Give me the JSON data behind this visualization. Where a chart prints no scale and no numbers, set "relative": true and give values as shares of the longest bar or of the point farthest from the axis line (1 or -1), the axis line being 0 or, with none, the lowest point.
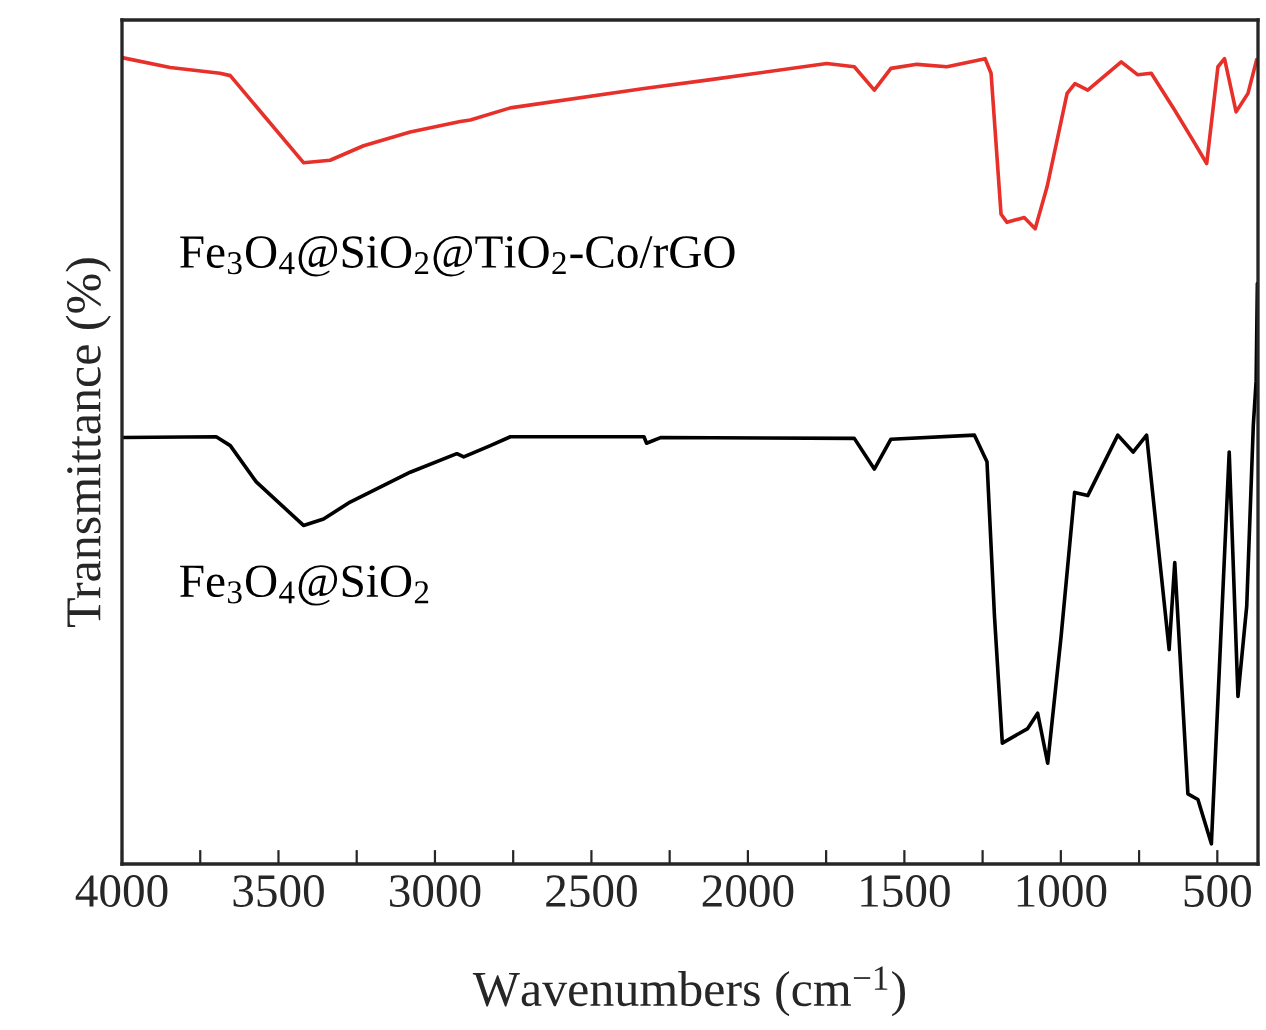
{
  "chart_data": {
    "type": "line",
    "relative": true,
    "xlabel": "Wavenumbers (cm$^{−1}$)",
    "ylabel": "Transmittance (%)",
    "xlim": [
      4000,
      370
    ],
    "xticks": [
      4000,
      {
        "value": 3750,
        "label": null
      },
      3500,
      {
        "value": 3250,
        "label": null
      },
      3000,
      {
        "value": 2750,
        "label": null
      },
      2500,
      {
        "value": 2250,
        "label": null
      },
      2000,
      {
        "value": 1750,
        "label": null
      },
      1500,
      {
        "value": 1250,
        "label": null
      },
      1000,
      {
        "value": 750,
        "label": null
      },
      500
    ],
    "tick_labels": "x",
    "grid": false,
    "legend": false,
    "series": [
      {
        "name": "Fe$_{3}$O$_{4}$@SiO$_{2}$@TiO$_{2}$-Co/rGO",
        "color": "#e8302a",
        "x": [
          3996,
          3846,
          3687,
          3654,
          3420,
          3335,
          3228,
          3079,
          2919,
          2887,
          2759,
          2332,
          2119,
          1748,
          1660,
          1596,
          1543,
          1460,
          1364,
          1242,
          1223,
          1191,
          1172,
          1117,
          1082,
          1044,
          980,
          955,
          914,
          807,
          754,
          711,
          636,
          572,
          534,
          498,
          477,
          440,
          402,
          374
        ],
        "values": [
          1.0,
          0.988,
          0.981,
          0.978,
          0.87,
          0.873,
          0.891,
          0.908,
          0.921,
          0.923,
          0.938,
          0.962,
          0.973,
          0.993,
          0.989,
          0.96,
          0.987,
          0.992,
          0.989,
          0.999,
          0.981,
          0.806,
          0.796,
          0.802,
          0.788,
          0.84,
          0.956,
          0.968,
          0.96,
          0.995,
          0.979,
          0.981,
          0.935,
          0.894,
          0.869,
          0.989,
          0.999,
          0.933,
          0.956,
          0.998
        ]
      },
      {
        "name": "Fe$_{3}$O$_{4}$@SiO$_{2}$",
        "color": "#000000",
        "x": [
          3996,
          3699,
          3654,
          3571,
          3420,
          3356,
          3271,
          3079,
          2930,
          2908,
          2823,
          2759,
          2332,
          2324,
          2279,
          1660,
          1596,
          1543,
          1276,
          1236,
          1212,
          1187,
          1106,
          1074,
          1042,
          999,
          956,
          914,
          818,
          769,
          726,
          690,
          654,
          636,
          594,
          562,
          519,
          462,
          434,
          406,
          385,
          376,
          372
        ],
        "values": [
          0.529,
          0.53,
          0.519,
          0.474,
          0.42,
          0.428,
          0.449,
          0.486,
          0.509,
          0.505,
          0.519,
          0.53,
          0.53,
          0.522,
          0.529,
          0.528,
          0.49,
          0.527,
          0.532,
          0.499,
          0.307,
          0.15,
          0.168,
          0.187,
          0.125,
          0.283,
          0.461,
          0.457,
          0.532,
          0.511,
          0.532,
          0.399,
          0.266,
          0.374,
          0.087,
          0.08,
          0.025,
          0.511,
          0.208,
          0.32,
          0.544,
          0.599,
          0.72
        ]
      }
    ]
  }
}
